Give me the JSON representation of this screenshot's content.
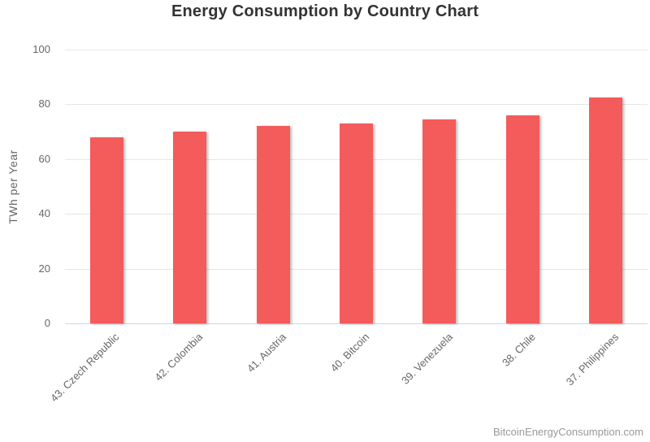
{
  "chart_data": {
    "type": "bar",
    "title": "Energy Consumption by Country Chart",
    "categories": [
      "43. Czech Republic",
      "42. Colombia",
      "41. Austria",
      "40. Bitcoin",
      "39. Venezuela",
      "38. Chile",
      "37. Philippines"
    ],
    "values": [
      68,
      70,
      72,
      73.1,
      74.5,
      76,
      82.5
    ],
    "xlabel": "",
    "ylabel": "TWh per Year",
    "ylim": [
      0,
      100
    ],
    "yticks": [
      0,
      20,
      40,
      60,
      80,
      100
    ],
    "grid": true,
    "legend": false,
    "bar_color": "#f45b5b",
    "grid_line_color": "#e6e6e6",
    "axis_line_color": "#ccd6eb",
    "tick_label_color": "#666666",
    "title_color": "#333333",
    "credits": "BitcoinEnergyConsumption.com",
    "credits_color": "#999999"
  }
}
